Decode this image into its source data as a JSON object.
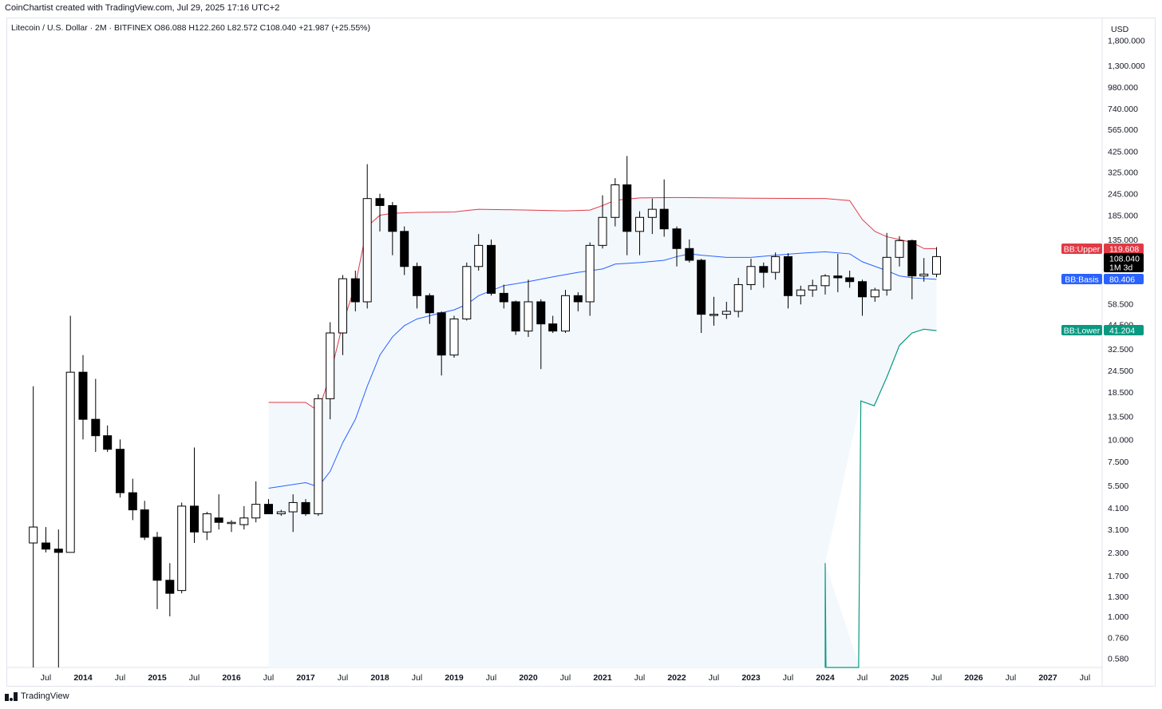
{
  "credit": "CoinChartist created with TradingView.com, Jul 29, 2025 17:16 UTC+2",
  "symbol_line": "Litecoin / U.S. Dollar · 2M · BITFINEX  O86.088  H122.260  L82.572  C108.040  +21.987 (+25.55%)",
  "footer_brand": "TradingView",
  "colors": {
    "up_body": "#ffffff",
    "down_body": "#000000",
    "bb_upper": "#e03a45",
    "bb_basis": "#2962ff",
    "bb_lower": "#089981",
    "bb_fill": "#f3f8fd",
    "grid": "#e0e3eb"
  },
  "chart_data": {
    "type": "candlestick",
    "currency_label": "USD",
    "y_scale": "log",
    "y_ticks": [
      "1,800.000",
      "1,300.000",
      "980.000",
      "740.000",
      "565.000",
      "425.000",
      "325.000",
      "245.000",
      "185.000",
      "135.000",
      "58.500",
      "44.500",
      "32.500",
      "24.500",
      "18.500",
      "13.500",
      "10.000",
      "7.500",
      "5.500",
      "4.100",
      "3.100",
      "2.300",
      "1.700",
      "1.300",
      "1.000",
      "0.760",
      "0.580"
    ],
    "x_ticks": [
      {
        "label": "Jul",
        "bold": false,
        "t": 2013.5
      },
      {
        "label": "2014",
        "bold": true,
        "t": 2014.0
      },
      {
        "label": "Jul",
        "bold": false,
        "t": 2014.5
      },
      {
        "label": "2015",
        "bold": true,
        "t": 2015.0
      },
      {
        "label": "Jul",
        "bold": false,
        "t": 2015.5
      },
      {
        "label": "2016",
        "bold": true,
        "t": 2016.0
      },
      {
        "label": "Jul",
        "bold": false,
        "t": 2016.5
      },
      {
        "label": "2017",
        "bold": true,
        "t": 2017.0
      },
      {
        "label": "Jul",
        "bold": false,
        "t": 2017.5
      },
      {
        "label": "2018",
        "bold": true,
        "t": 2018.0
      },
      {
        "label": "Jul",
        "bold": false,
        "t": 2018.5
      },
      {
        "label": "2019",
        "bold": true,
        "t": 2019.0
      },
      {
        "label": "Jul",
        "bold": false,
        "t": 2019.5
      },
      {
        "label": "2020",
        "bold": true,
        "t": 2020.0
      },
      {
        "label": "Jul",
        "bold": false,
        "t": 2020.5
      },
      {
        "label": "2021",
        "bold": true,
        "t": 2021.0
      },
      {
        "label": "Jul",
        "bold": false,
        "t": 2021.5
      },
      {
        "label": "2022",
        "bold": true,
        "t": 2022.0
      },
      {
        "label": "Jul",
        "bold": false,
        "t": 2022.5
      },
      {
        "label": "2023",
        "bold": true,
        "t": 2023.0
      },
      {
        "label": "Jul",
        "bold": false,
        "t": 2023.5
      },
      {
        "label": "2024",
        "bold": true,
        "t": 2024.0
      },
      {
        "label": "Jul",
        "bold": false,
        "t": 2024.5
      },
      {
        "label": "2025",
        "bold": true,
        "t": 2025.0
      },
      {
        "label": "Jul",
        "bold": false,
        "t": 2025.5
      },
      {
        "label": "2026",
        "bold": true,
        "t": 2026.0
      },
      {
        "label": "Jul",
        "bold": false,
        "t": 2026.5
      },
      {
        "label": "2027",
        "bold": true,
        "t": 2027.0
      },
      {
        "label": "Jul",
        "bold": false,
        "t": 2027.5
      }
    ],
    "candles": [
      {
        "t": 2013.33,
        "o": 2.6,
        "h": 20.0,
        "l": 0.4,
        "c": 3.2
      },
      {
        "t": 2013.5,
        "o": 2.6,
        "h": 3.2,
        "l": 2.3,
        "c": 2.4
      },
      {
        "t": 2013.67,
        "o": 2.4,
        "h": 3.1,
        "l": 0.4,
        "c": 2.3
      },
      {
        "t": 2013.83,
        "o": 2.3,
        "h": 50.0,
        "l": 2.3,
        "c": 24.0
      },
      {
        "t": 2014.0,
        "o": 24.0,
        "h": 30.0,
        "l": 10.0,
        "c": 13.0
      },
      {
        "t": 2014.17,
        "o": 13.0,
        "h": 22.0,
        "l": 8.5,
        "c": 10.5
      },
      {
        "t": 2014.33,
        "o": 10.5,
        "h": 12.0,
        "l": 8.5,
        "c": 8.8
      },
      {
        "t": 2014.5,
        "o": 8.8,
        "h": 10.0,
        "l": 4.7,
        "c": 5.0
      },
      {
        "t": 2014.67,
        "o": 5.0,
        "h": 6.0,
        "l": 3.5,
        "c": 4.0
      },
      {
        "t": 2014.83,
        "o": 4.0,
        "h": 4.5,
        "l": 2.7,
        "c": 2.8
      },
      {
        "t": 2015.0,
        "o": 2.8,
        "h": 3.0,
        "l": 1.1,
        "c": 1.6
      },
      {
        "t": 2015.17,
        "o": 1.6,
        "h": 2.0,
        "l": 1.0,
        "c": 1.35
      },
      {
        "t": 2015.33,
        "o": 1.4,
        "h": 4.4,
        "l": 1.35,
        "c": 4.2
      },
      {
        "t": 2015.5,
        "o": 4.2,
        "h": 9.0,
        "l": 2.6,
        "c": 3.0
      },
      {
        "t": 2015.67,
        "o": 3.0,
        "h": 3.9,
        "l": 2.7,
        "c": 3.8
      },
      {
        "t": 2015.83,
        "o": 3.6,
        "h": 4.9,
        "l": 3.1,
        "c": 3.4
      },
      {
        "t": 2016.0,
        "o": 3.4,
        "h": 3.5,
        "l": 3.0,
        "c": 3.4
      },
      {
        "t": 2016.17,
        "o": 3.3,
        "h": 4.2,
        "l": 3.1,
        "c": 3.6
      },
      {
        "t": 2016.33,
        "o": 3.6,
        "h": 5.8,
        "l": 3.4,
        "c": 4.3
      },
      {
        "t": 2016.5,
        "o": 4.3,
        "h": 4.6,
        "l": 3.8,
        "c": 3.8
      },
      {
        "t": 2016.67,
        "o": 3.8,
        "h": 4.0,
        "l": 3.7,
        "c": 3.9
      },
      {
        "t": 2016.83,
        "o": 3.9,
        "h": 4.9,
        "l": 3.0,
        "c": 4.4
      },
      {
        "t": 2017.0,
        "o": 4.4,
        "h": 4.6,
        "l": 3.7,
        "c": 3.8
      },
      {
        "t": 2017.17,
        "o": 3.8,
        "h": 18.0,
        "l": 3.7,
        "c": 17.0
      },
      {
        "t": 2017.33,
        "o": 17.0,
        "h": 46.0,
        "l": 13.0,
        "c": 40.0
      },
      {
        "t": 2017.5,
        "o": 40.0,
        "h": 85.0,
        "l": 30.0,
        "c": 81.0
      },
      {
        "t": 2017.67,
        "o": 81.0,
        "h": 90.0,
        "l": 53.0,
        "c": 60.0
      },
      {
        "t": 2017.83,
        "o": 60.0,
        "h": 360.0,
        "l": 55.0,
        "c": 230.0
      },
      {
        "t": 2018.0,
        "o": 230.0,
        "h": 245.0,
        "l": 150.0,
        "c": 210.0
      },
      {
        "t": 2018.17,
        "o": 210.0,
        "h": 220.0,
        "l": 110.0,
        "c": 150.0
      },
      {
        "t": 2018.33,
        "o": 150.0,
        "h": 160.0,
        "l": 85.0,
        "c": 95.0
      },
      {
        "t": 2018.5,
        "o": 95.0,
        "h": 100.0,
        "l": 55.0,
        "c": 65.0
      },
      {
        "t": 2018.67,
        "o": 65.0,
        "h": 67.0,
        "l": 45.0,
        "c": 52.0
      },
      {
        "t": 2018.83,
        "o": 52.0,
        "h": 53.0,
        "l": 23.0,
        "c": 30.0
      },
      {
        "t": 2019.0,
        "o": 30.0,
        "h": 50.0,
        "l": 29.0,
        "c": 48.0
      },
      {
        "t": 2019.17,
        "o": 48.0,
        "h": 100.0,
        "l": 47.0,
        "c": 95.0
      },
      {
        "t": 2019.33,
        "o": 95.0,
        "h": 145.0,
        "l": 90.0,
        "c": 125.0
      },
      {
        "t": 2019.5,
        "o": 125.0,
        "h": 135.0,
        "l": 65.0,
        "c": 67.0
      },
      {
        "t": 2019.67,
        "o": 67.0,
        "h": 75.0,
        "l": 55.0,
        "c": 60.0
      },
      {
        "t": 2019.83,
        "o": 60.0,
        "h": 61.0,
        "l": 39.0,
        "c": 41.0
      },
      {
        "t": 2020.0,
        "o": 41.0,
        "h": 80.0,
        "l": 38.0,
        "c": 60.0
      },
      {
        "t": 2020.17,
        "o": 60.0,
        "h": 62.0,
        "l": 25.0,
        "c": 45.0
      },
      {
        "t": 2020.33,
        "o": 45.0,
        "h": 50.0,
        "l": 40.0,
        "c": 41.0
      },
      {
        "t": 2020.5,
        "o": 41.0,
        "h": 70.0,
        "l": 40.0,
        "c": 65.0
      },
      {
        "t": 2020.67,
        "o": 65.0,
        "h": 68.0,
        "l": 53.0,
        "c": 60.0
      },
      {
        "t": 2020.83,
        "o": 60.0,
        "h": 130.0,
        "l": 50.0,
        "c": 125.0
      },
      {
        "t": 2021.0,
        "o": 125.0,
        "h": 240.0,
        "l": 120.0,
        "c": 180.0
      },
      {
        "t": 2021.17,
        "o": 180.0,
        "h": 300.0,
        "l": 160.0,
        "c": 275.0
      },
      {
        "t": 2021.33,
        "o": 275.0,
        "h": 400.0,
        "l": 110.0,
        "c": 150.0
      },
      {
        "t": 2021.5,
        "o": 150.0,
        "h": 195.0,
        "l": 110.0,
        "c": 180.0
      },
      {
        "t": 2021.67,
        "o": 180.0,
        "h": 230.0,
        "l": 145.0,
        "c": 200.0
      },
      {
        "t": 2021.83,
        "o": 200.0,
        "h": 295.0,
        "l": 140.0,
        "c": 155.0
      },
      {
        "t": 2022.0,
        "o": 155.0,
        "h": 160.0,
        "l": 95.0,
        "c": 120.0
      },
      {
        "t": 2022.17,
        "o": 120.0,
        "h": 135.0,
        "l": 100.0,
        "c": 103.0
      },
      {
        "t": 2022.33,
        "o": 103.0,
        "h": 105.0,
        "l": 40.0,
        "c": 51.0
      },
      {
        "t": 2022.5,
        "o": 51.0,
        "h": 64.0,
        "l": 44.0,
        "c": 51.0
      },
      {
        "t": 2022.67,
        "o": 51.0,
        "h": 60.0,
        "l": 48.0,
        "c": 53.0
      },
      {
        "t": 2022.83,
        "o": 53.0,
        "h": 82.0,
        "l": 49.0,
        "c": 75.0
      },
      {
        "t": 2023.0,
        "o": 75.0,
        "h": 105.0,
        "l": 70.0,
        "c": 95.0
      },
      {
        "t": 2023.17,
        "o": 95.0,
        "h": 100.0,
        "l": 72.0,
        "c": 88.0
      },
      {
        "t": 2023.33,
        "o": 88.0,
        "h": 114.0,
        "l": 80.0,
        "c": 108.0
      },
      {
        "t": 2023.5,
        "o": 108.0,
        "h": 113.0,
        "l": 55.0,
        "c": 65.0
      },
      {
        "t": 2023.67,
        "o": 65.0,
        "h": 74.0,
        "l": 58.0,
        "c": 70.0
      },
      {
        "t": 2023.83,
        "o": 70.0,
        "h": 80.0,
        "l": 64.0,
        "c": 74.0
      },
      {
        "t": 2024.0,
        "o": 74.0,
        "h": 86.0,
        "l": 66.0,
        "c": 84.0
      },
      {
        "t": 2024.17,
        "o": 84.0,
        "h": 112.0,
        "l": 68.0,
        "c": 82.0
      },
      {
        "t": 2024.33,
        "o": 82.0,
        "h": 90.0,
        "l": 72.0,
        "c": 78.0
      },
      {
        "t": 2024.5,
        "o": 78.0,
        "h": 80.0,
        "l": 50.0,
        "c": 64.0
      },
      {
        "t": 2024.67,
        "o": 64.0,
        "h": 72.0,
        "l": 60.0,
        "c": 70.0
      },
      {
        "t": 2024.83,
        "o": 70.0,
        "h": 147.0,
        "l": 65.0,
        "c": 107.0
      },
      {
        "t": 2025.0,
        "o": 107.0,
        "h": 141.0,
        "l": 95.0,
        "c": 133.0
      },
      {
        "t": 2025.17,
        "o": 133.0,
        "h": 135.0,
        "l": 62.0,
        "c": 84.0
      },
      {
        "t": 2025.33,
        "o": 84.0,
        "h": 106.0,
        "l": 78.0,
        "c": 86.0
      },
      {
        "t": 2025.5,
        "o": 86.0,
        "h": 122.26,
        "l": 82.57,
        "c": 108.04
      }
    ],
    "bb_upper": [
      [
        2016.5,
        16.2
      ],
      [
        2017.0,
        16.2
      ],
      [
        2017.17,
        14.5
      ],
      [
        2017.33,
        23.0
      ],
      [
        2017.5,
        45.0
      ],
      [
        2017.67,
        75.0
      ],
      [
        2017.83,
        160.0
      ],
      [
        2018.0,
        185.0
      ],
      [
        2018.17,
        190.0
      ],
      [
        2018.5,
        192.0
      ],
      [
        2019.0,
        193.0
      ],
      [
        2019.17,
        197.0
      ],
      [
        2019.33,
        200.0
      ],
      [
        2020.0,
        198.0
      ],
      [
        2020.5,
        196.0
      ],
      [
        2020.83,
        198.0
      ],
      [
        2021.0,
        210.0
      ],
      [
        2021.17,
        225.0
      ],
      [
        2021.5,
        232.0
      ],
      [
        2022.0,
        233.0
      ],
      [
        2023.0,
        231.0
      ],
      [
        2024.0,
        230.0
      ],
      [
        2024.33,
        224.0
      ],
      [
        2024.5,
        175.0
      ],
      [
        2024.67,
        150.0
      ],
      [
        2024.83,
        140.0
      ],
      [
        2025.0,
        135.0
      ],
      [
        2025.17,
        130.0
      ],
      [
        2025.33,
        120.0
      ],
      [
        2025.5,
        119.608
      ]
    ],
    "bb_basis": [
      [
        2016.5,
        5.3
      ],
      [
        2017.0,
        5.7
      ],
      [
        2017.17,
        5.4
      ],
      [
        2017.33,
        6.6
      ],
      [
        2017.5,
        9.6
      ],
      [
        2017.67,
        13.0
      ],
      [
        2017.83,
        20.0
      ],
      [
        2018.0,
        30.0
      ],
      [
        2018.17,
        38.0
      ],
      [
        2018.33,
        44.0
      ],
      [
        2018.5,
        48.0
      ],
      [
        2018.83,
        52.0
      ],
      [
        2019.0,
        54.0
      ],
      [
        2019.17,
        58.0
      ],
      [
        2019.33,
        65.0
      ],
      [
        2019.67,
        74.0
      ],
      [
        2020.0,
        78.0
      ],
      [
        2020.33,
        83.0
      ],
      [
        2020.67,
        88.0
      ],
      [
        2021.0,
        92.0
      ],
      [
        2021.17,
        98.0
      ],
      [
        2021.5,
        100.0
      ],
      [
        2021.83,
        103.0
      ],
      [
        2022.0,
        108.0
      ],
      [
        2022.17,
        112.0
      ],
      [
        2022.33,
        110.0
      ],
      [
        2022.67,
        107.0
      ],
      [
        2023.0,
        107.0
      ],
      [
        2023.33,
        110.0
      ],
      [
        2023.67,
        113.0
      ],
      [
        2024.0,
        115.0
      ],
      [
        2024.33,
        112.0
      ],
      [
        2024.5,
        101.0
      ],
      [
        2024.83,
        90.0
      ],
      [
        2025.0,
        84.0
      ],
      [
        2025.17,
        82.0
      ],
      [
        2025.5,
        80.406
      ]
    ],
    "bb_lower": [
      [
        2024.0,
        0.4
      ],
      [
        2024.0,
        2.0
      ],
      [
        2024.01,
        0.4
      ],
      [
        2024.45,
        0.4
      ],
      [
        2024.48,
        16.5
      ],
      [
        2024.66,
        15.5
      ],
      [
        2024.83,
        22.5
      ],
      [
        2025.0,
        34.0
      ],
      [
        2025.17,
        40.0
      ],
      [
        2025.33,
        42.0
      ],
      [
        2025.5,
        41.204
      ]
    ],
    "tags": [
      {
        "name": "BB:Upper",
        "value": "119.608",
        "color": "#e03a45",
        "anchor": 119.608
      },
      {
        "name": "",
        "value": "108.040",
        "sub": "1M 3d",
        "color": "#000000",
        "anchor": 108.04
      },
      {
        "name": "BB:Basis",
        "value": "80.406",
        "color": "#2962ff",
        "anchor": 80.406
      },
      {
        "name": "BB:Lower",
        "value": "41.204",
        "color": "#089981",
        "anchor": 41.204
      }
    ]
  }
}
